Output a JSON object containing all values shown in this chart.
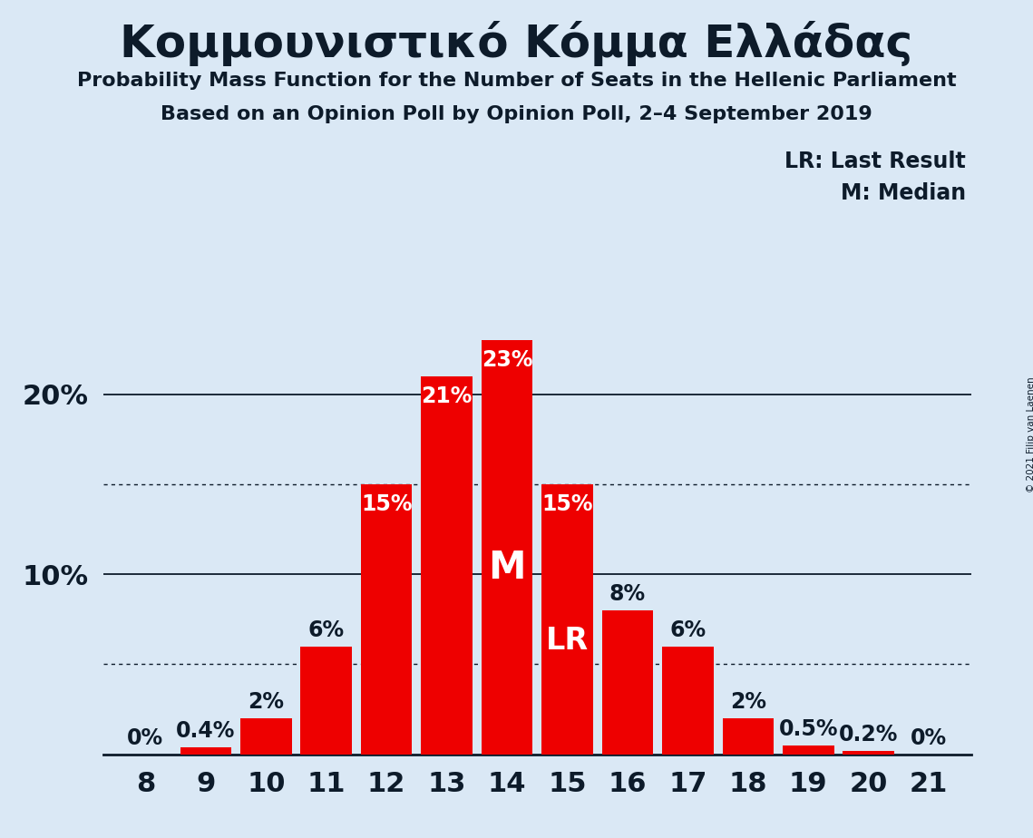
{
  "title": "Κομμουνιστικό Κόμμα Ελλάδας",
  "subtitle1": "Probability Mass Function for the Number of Seats in the Hellenic Parliament",
  "subtitle2": "Based on an Opinion Poll by Opinion Poll, 2–4 September 2019",
  "copyright": "© 2021 Filip van Laenen",
  "seats": [
    8,
    9,
    10,
    11,
    12,
    13,
    14,
    15,
    16,
    17,
    18,
    19,
    20,
    21
  ],
  "probabilities": [
    0.0,
    0.4,
    2.0,
    6.0,
    15.0,
    21.0,
    23.0,
    15.0,
    8.0,
    6.0,
    2.0,
    0.5,
    0.2,
    0.0
  ],
  "bar_color": "#ee0000",
  "background_color": "#dae8f5",
  "text_color": "#0d1b2a",
  "median_seat": 14,
  "lr_seat": 15,
  "legend_lr": "LR: Last Result",
  "legend_m": "M: Median",
  "ylim": [
    0,
    27
  ],
  "solid_yticks": [
    10,
    20
  ],
  "dotted_yticks": [
    5,
    15
  ]
}
